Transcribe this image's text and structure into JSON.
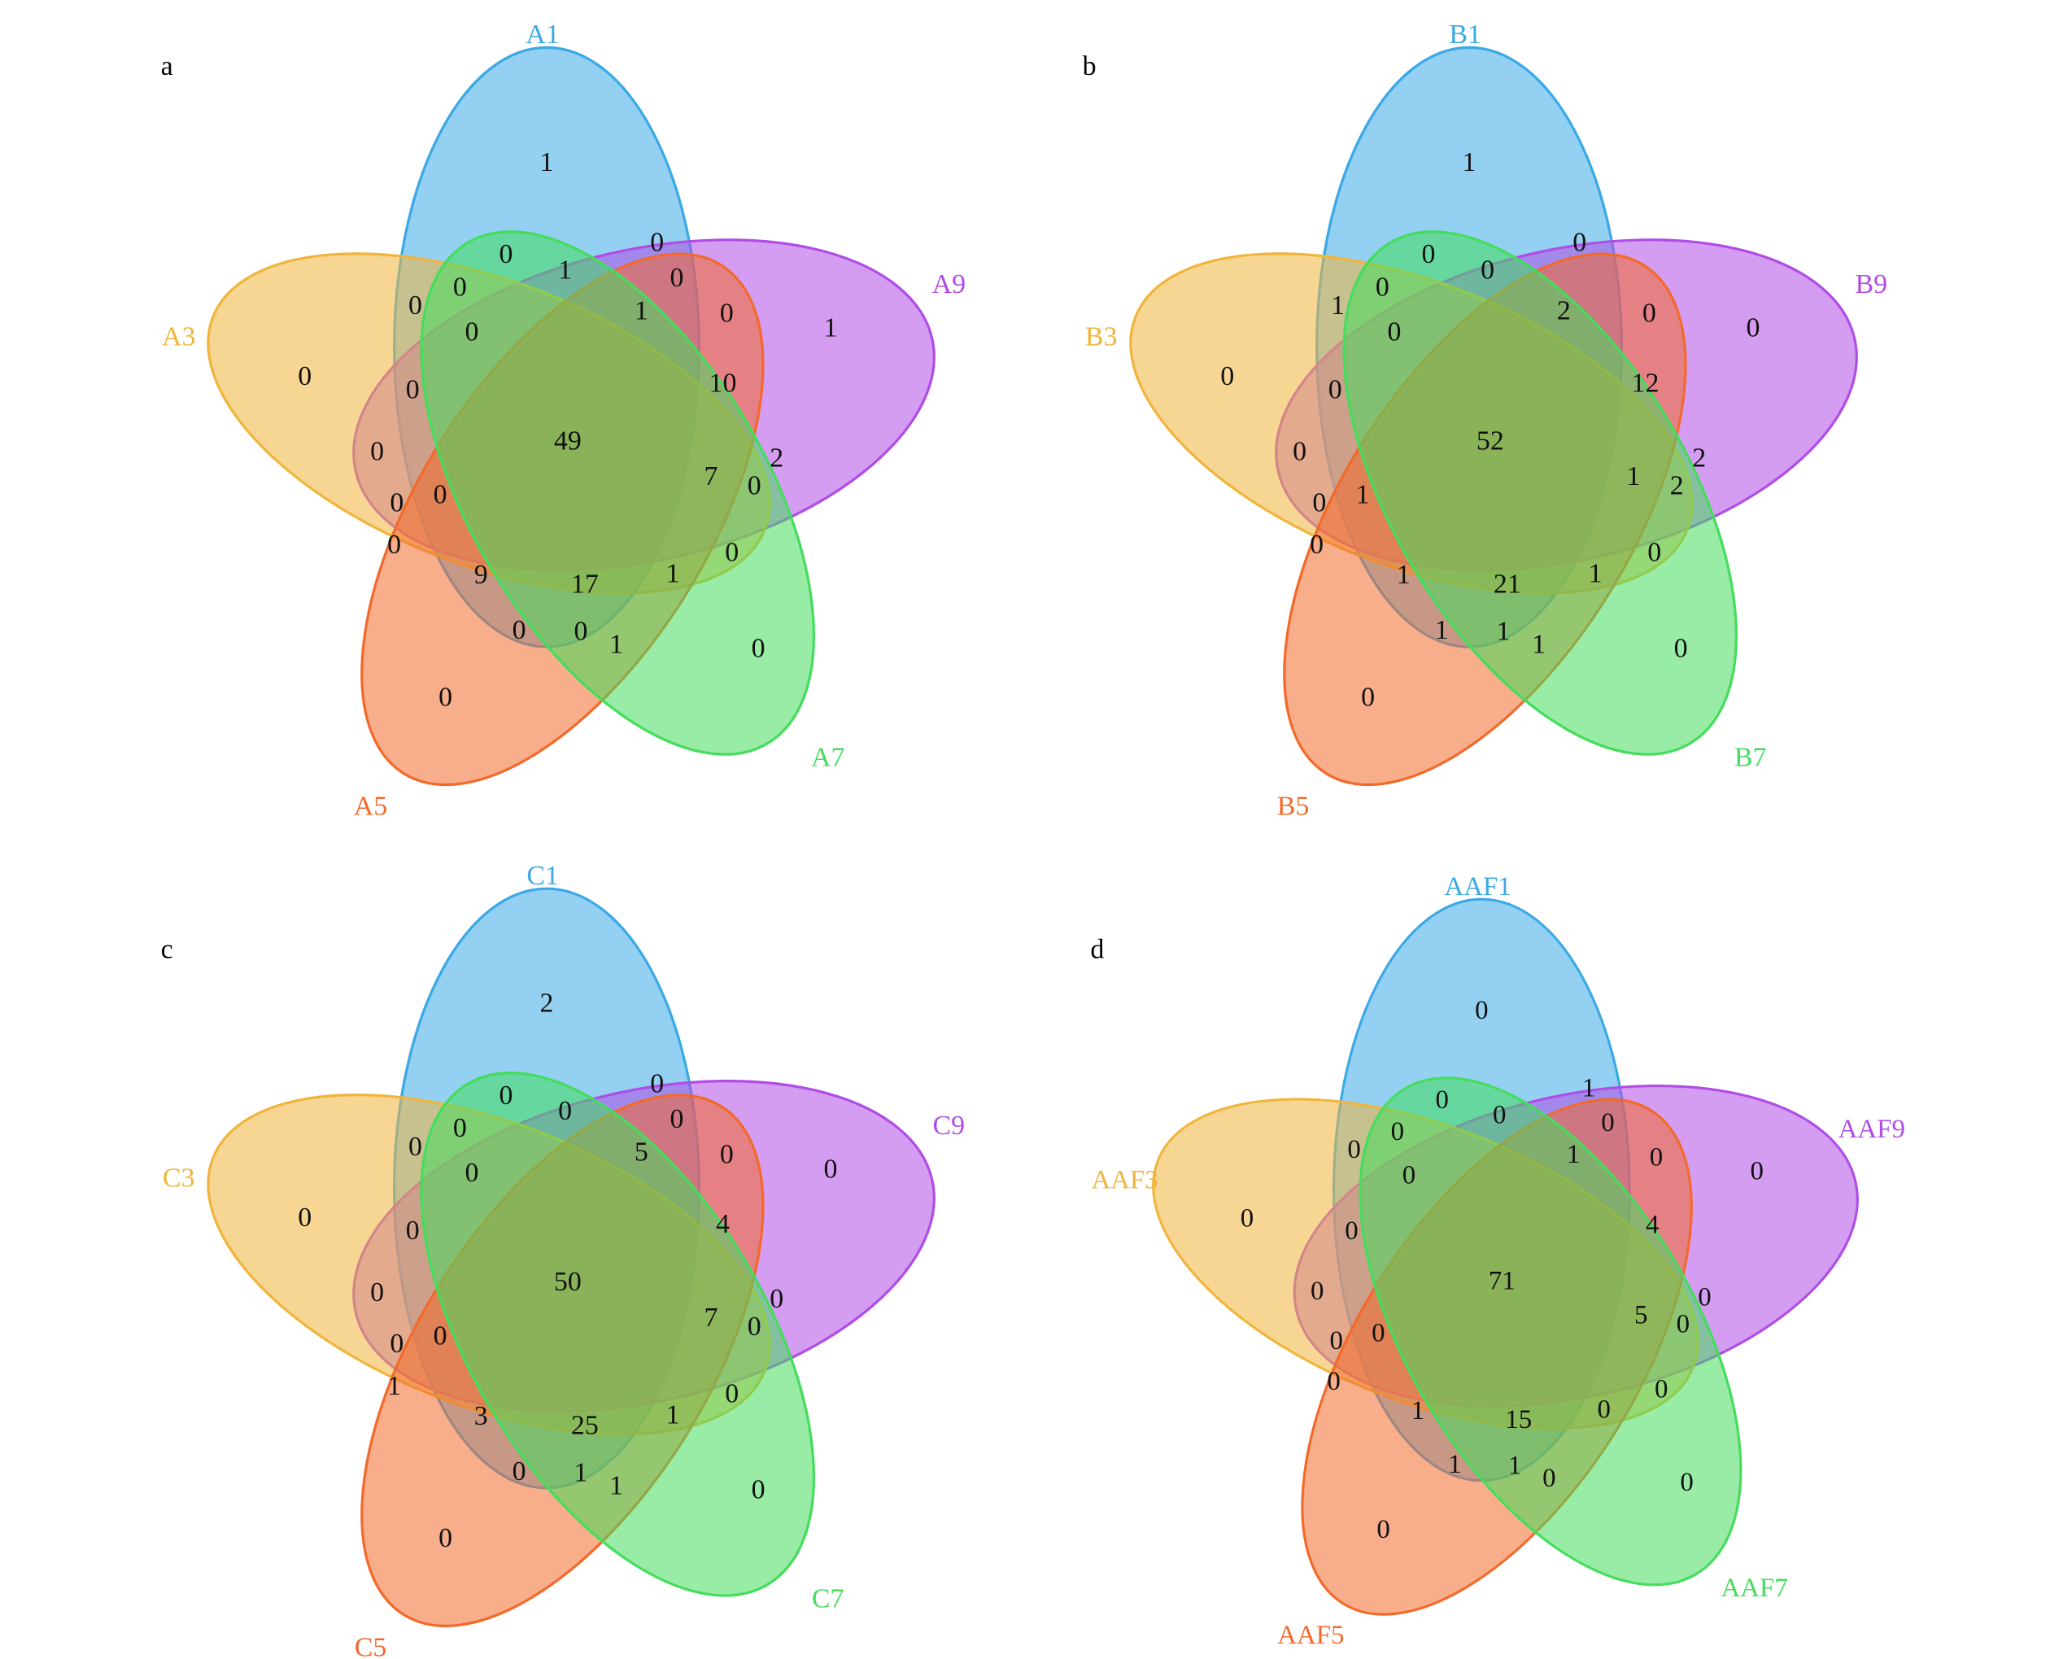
{
  "panels": [
    {
      "letter": "a",
      "sets": [
        "A1",
        "A9",
        "A3",
        "A5",
        "A7"
      ],
      "regions": [
        1,
        0,
        1,
        0,
        0,
        0,
        0,
        1,
        0,
        1,
        0,
        0,
        10,
        0,
        49,
        0,
        2,
        7,
        0,
        0,
        0,
        0,
        0,
        9,
        17,
        1,
        0,
        0,
        1,
        0,
        0
      ]
    },
    {
      "letter": "b",
      "sets": [
        "B1",
        "B9",
        "B3",
        "B5",
        "B7"
      ],
      "regions": [
        1,
        0,
        0,
        0,
        null,
        0,
        1,
        2,
        0,
        0,
        0,
        0,
        12,
        0,
        52,
        0,
        2,
        1,
        2,
        1,
        0,
        0,
        0,
        1,
        21,
        1,
        1,
        1,
        1,
        0,
        0
      ]
    },
    {
      "letter": "c",
      "sets": [
        "C1",
        "C9",
        "C3",
        "C5",
        "C7"
      ],
      "regions": [
        2,
        0,
        0,
        0,
        0,
        0,
        0,
        5,
        0,
        0,
        0,
        0,
        4,
        0,
        50,
        0,
        0,
        7,
        0,
        0,
        0,
        1,
        0,
        3,
        25,
        1,
        0,
        1,
        1,
        0,
        0
      ]
    },
    {
      "letter": "d",
      "sets": [
        "AAF1",
        "AAF9",
        "AAF3",
        "AAF5",
        "AAF7"
      ],
      "regions": [
        0,
        0,
        0,
        1,
        0,
        0,
        0,
        1,
        0,
        0,
        0,
        0,
        4,
        0,
        71,
        0,
        0,
        5,
        0,
        0,
        0,
        0,
        0,
        1,
        15,
        0,
        1,
        1,
        0,
        0,
        0
      ]
    }
  ]
}
